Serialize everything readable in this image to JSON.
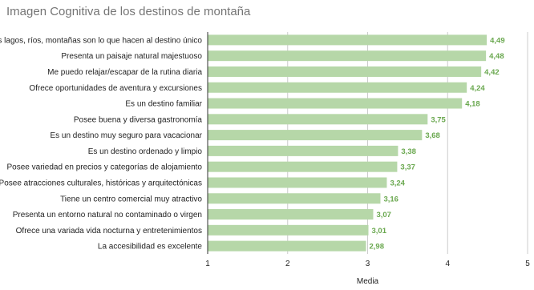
{
  "chart_data": {
    "type": "bar",
    "orientation": "horizontal",
    "title": "Imagen Cognitiva de los destinos de montaña",
    "xlabel": "Media",
    "ylabel": "",
    "xlim": [
      1,
      5
    ],
    "xticks": [
      "1",
      "2",
      "3",
      "4",
      "5"
    ],
    "grid": true,
    "bar_color": "#b6d7a8",
    "label_color": "#6aa84f",
    "categories": [
      "Sus lagos, ríos, montañas son lo que hacen al destino único",
      "Presenta un paisaje natural majestuoso",
      "Me puedo relajar/escapar de la rutina diaria",
      "Ofrece oportunidades de aventura y excursiones",
      "Es un destino familiar",
      "Posee buena y diversa gastronomía",
      "Es un destino muy seguro para vacacionar",
      "Es un destino ordenado y limpio",
      "Posee variedad en precios y categorías de alojamiento",
      "Posee atracciones culturales, históricas y arquitectónicas",
      "Tiene un centro comercial muy atractivo",
      "Presenta un entorno natural no contaminado o virgen",
      "Ofrece una variada vida nocturna y entretenimientos",
      "La accesibilidad es excelente"
    ],
    "values": [
      4.49,
      4.48,
      4.42,
      4.24,
      4.18,
      3.75,
      3.68,
      3.38,
      3.37,
      3.24,
      3.16,
      3.07,
      3.01,
      2.98
    ],
    "value_labels": [
      "4,49",
      "4,48",
      "4,42",
      "4,24",
      "4,18",
      "3,75",
      "3,68",
      "3,38",
      "3,37",
      "3,24",
      "3,16",
      "3,07",
      "3,01",
      "2,98"
    ]
  }
}
